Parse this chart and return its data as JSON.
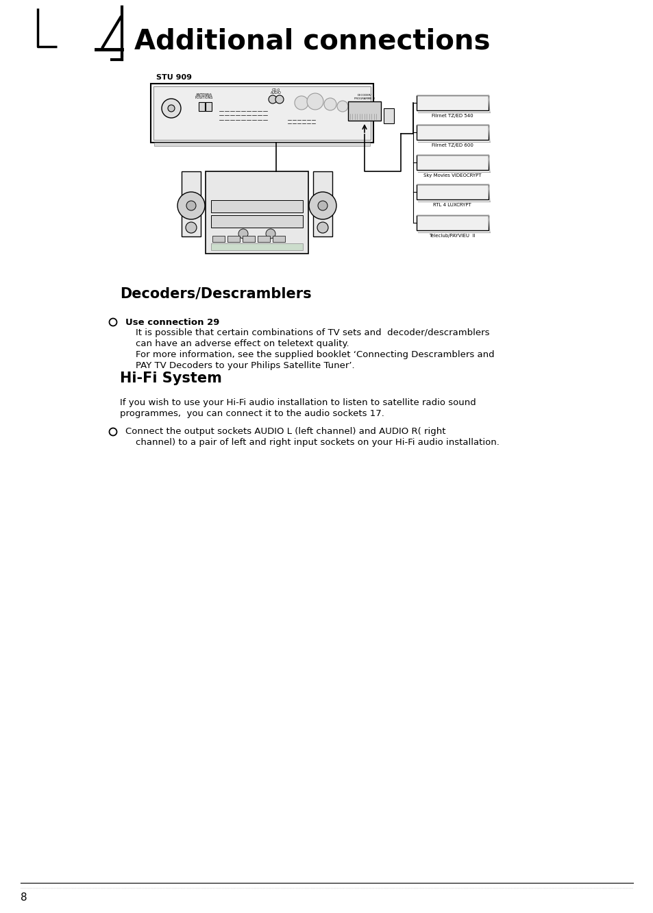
{
  "title": "Additional connections",
  "bg_color": "#ffffff",
  "section1_title": "Decoders/Descramblers",
  "section1_bullet1_header": "Use connection 29",
  "section1_bullet1_text1": "It is possible that certain combinations of TV sets and  decoder/descramblers",
  "section1_bullet1_text2": "can have an adverse effect on teletext quality.",
  "section1_bullet1_text3": "For more information, see the supplied booklet ‘Connecting Descramblers and",
  "section1_bullet1_text4": "PAY TV Decoders to your Philips Satellite Tuner’.",
  "section2_title": "Hi-Fi System",
  "section2_intro1": "If you wish to use your Hi-Fi audio installation to listen to satellite radio sound",
  "section2_intro2": "programmes,  you can connect it to the audio sockets 17.",
  "section2_bullet1": "Connect the output sockets AUDIO L (left channel) and AUDIO R( right",
  "section2_bullet2": "channel) to a pair of left and right input sockets on your Hi-Fi audio installation.",
  "stu_label": "STU 909",
  "decoder_labels": [
    "Filrnet TZ/ED 540",
    "Filrnet TZ/ED 600",
    "Sky Movies VIDEOCRYPT",
    "RTL 4 LUXCRYPT",
    "Teleclub/PAYVIEU  II"
  ],
  "page_number": "8"
}
